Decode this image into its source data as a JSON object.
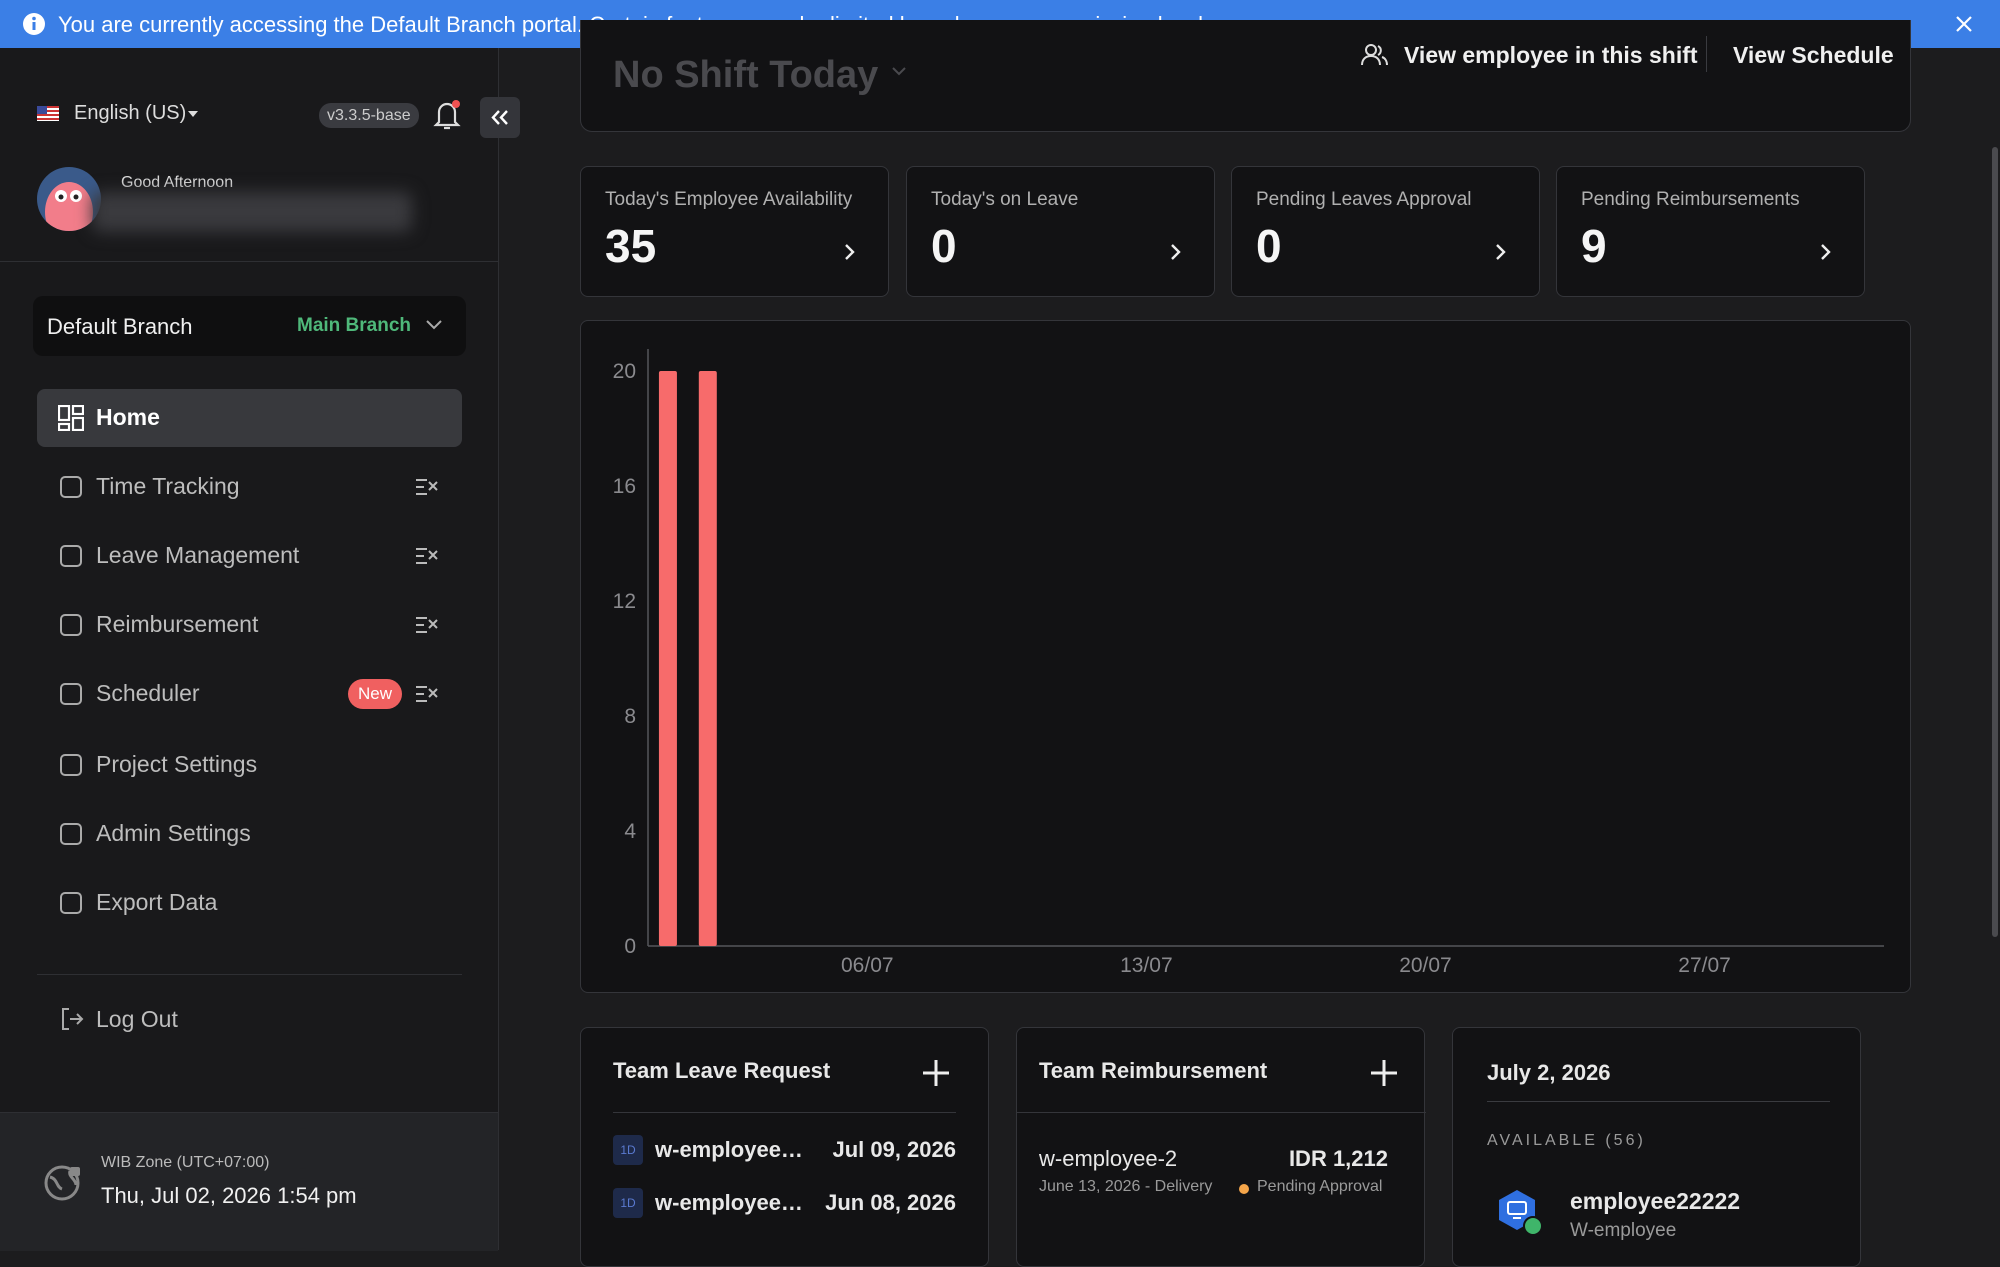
{
  "banner": {
    "message": "You are currently accessing the Default Branch portal. Certain features may be limited based on your permission level."
  },
  "sidebar": {
    "language": "English (US)",
    "version": "v3.3.5-base",
    "greeting": "Good Afternoon",
    "branch": {
      "label": "Default Branch",
      "value": "Main Branch"
    },
    "menu": [
      {
        "label": "Home"
      },
      {
        "label": "Time Tracking"
      },
      {
        "label": "Leave Management"
      },
      {
        "label": "Reimbursement"
      },
      {
        "label": "Scheduler",
        "badge": "New"
      },
      {
        "label": "Project Settings"
      },
      {
        "label": "Admin Settings"
      },
      {
        "label": "Export Data"
      }
    ],
    "logout": "Log Out",
    "timezone": "WIB Zone (UTC+07:00)",
    "datetime": "Thu, Jul 02, 2026 1:54 pm"
  },
  "shift": {
    "title": "No Shift Today",
    "view_employees": "View employee in this shift",
    "view_schedule": "View Schedule"
  },
  "stats": [
    {
      "label": "Today's Employee Availability",
      "value": 35
    },
    {
      "label": "Today's on Leave",
      "value": 0
    },
    {
      "label": "Pending Leaves Approval",
      "value": 0
    },
    {
      "label": "Pending Reimbursements",
      "value": 9
    }
  ],
  "chart": {
    "type": "bar",
    "x": [
      1,
      2
    ],
    "values": [
      20,
      20
    ],
    "color": "#f76b6b",
    "xlim": [
      0.5,
      31.5
    ],
    "ylim": [
      0,
      20
    ],
    "yticks": [
      0,
      4,
      8,
      12,
      16,
      20
    ],
    "xticks": [
      {
        "value": 6,
        "label": "06/07"
      },
      {
        "value": 13,
        "label": "13/07"
      },
      {
        "value": 20,
        "label": "20/07"
      },
      {
        "value": 27,
        "label": "27/07"
      }
    ]
  },
  "team_leave": {
    "title": "Team Leave Request",
    "rows": [
      {
        "badge": "1D",
        "name": "w-employee…",
        "date": "Jul 09, 2026"
      },
      {
        "badge": "1D",
        "name": "w-employee…",
        "date": "Jun 08, 2026"
      }
    ]
  },
  "team_reimbursement": {
    "title": "Team Reimbursement",
    "rows": [
      {
        "name": "w-employee-2",
        "amount": "IDR 1,212",
        "detail": "June 13, 2026 - Delivery",
        "status": "Pending Approval"
      }
    ]
  },
  "availability": {
    "date": "July 2, 2026",
    "heading": "AVAILABLE (56)",
    "employees": [
      {
        "name": "employee22222",
        "role": "W-employee"
      }
    ]
  }
}
